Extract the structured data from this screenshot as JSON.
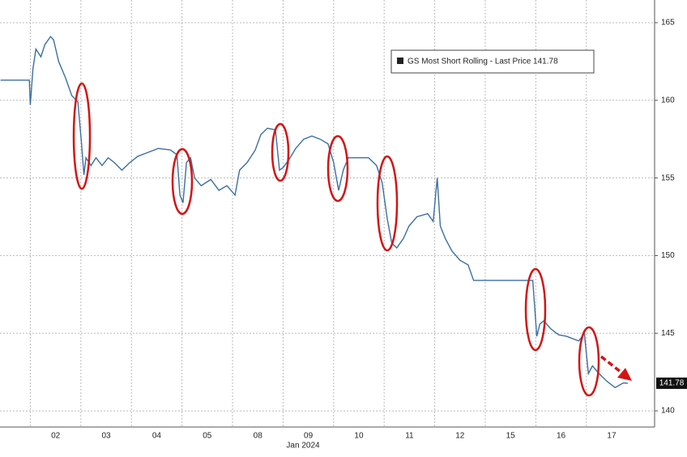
{
  "chart_data": {
    "type": "line",
    "x_label": "Jan 2024",
    "xlim": [
      -0.6,
      12.35
    ],
    "xticks": [
      {
        "value": 0.5,
        "label": "02"
      },
      {
        "value": 1.5,
        "label": "03"
      },
      {
        "value": 2.5,
        "label": "04"
      },
      {
        "value": 3.5,
        "label": "05"
      },
      {
        "value": 4.5,
        "label": "08"
      },
      {
        "value": 5.5,
        "label": "09"
      },
      {
        "value": 6.5,
        "label": "10"
      },
      {
        "value": 7.5,
        "label": "11"
      },
      {
        "value": 8.5,
        "label": "12"
      },
      {
        "value": 9.5,
        "label": "15"
      },
      {
        "value": 10.5,
        "label": "16"
      },
      {
        "value": 11.5,
        "label": "17"
      }
    ],
    "ylim": [
      138.96,
      166.46
    ],
    "yticks": [
      140,
      145,
      150,
      155,
      160,
      165
    ],
    "grid": true,
    "series": [
      {
        "name": "GS Most Short Rolling - Last Price 141.78",
        "color": "#3b6fa3",
        "x": [
          -0.59,
          -0.02,
          0,
          0.05,
          0.11,
          0.21,
          0.29,
          0.4,
          0.46,
          0.56,
          0.69,
          0.82,
          0.94,
          1.01,
          1.06,
          1.1,
          1.2,
          1.3,
          1.42,
          1.54,
          1.66,
          1.81,
          1.97,
          2.13,
          2.29,
          2.53,
          2.77,
          2.9,
          2.96,
          3.02,
          3.09,
          3.17,
          3.25,
          3.38,
          3.57,
          3.73,
          3.89,
          4.05,
          4.14,
          4.29,
          4.45,
          4.56,
          4.69,
          4.85,
          4.93,
          5.01,
          5.14,
          5.25,
          5.41,
          5.57,
          5.73,
          5.89,
          6.0,
          6.1,
          6.19,
          6.29,
          6.45,
          6.69,
          6.85,
          6.96,
          7.06,
          7.15,
          7.25,
          7.38,
          7.49,
          7.65,
          7.86,
          7.97,
          8.05,
          8.11,
          8.21,
          8.34,
          8.5,
          8.66,
          8.77,
          9.01,
          9.94,
          10.02,
          10.08,
          10.16,
          10.29,
          10.45,
          10.61,
          10.85,
          10.96,
          11.04,
          11.12,
          11.25,
          11.41,
          11.57,
          11.73,
          11.82
        ],
        "values": [
          161.3,
          161.3,
          159.7,
          162.0,
          163.3,
          162.8,
          163.6,
          164.1,
          163.9,
          162.5,
          161.5,
          160.3,
          159.9,
          157.3,
          155.2,
          156.3,
          155.8,
          156.3,
          155.8,
          156.3,
          156.0,
          155.5,
          156.0,
          156.4,
          156.6,
          156.9,
          156.8,
          156.5,
          153.9,
          153.4,
          156.0,
          156.3,
          155.0,
          154.5,
          154.9,
          154.2,
          154.5,
          153.9,
          155.5,
          156.0,
          156.8,
          157.8,
          158.2,
          158.1,
          155.5,
          155.7,
          156.3,
          156.9,
          157.5,
          157.7,
          157.5,
          157.2,
          156.0,
          154.2,
          155.5,
          156.3,
          156.3,
          156.3,
          155.8,
          154.7,
          152.4,
          150.8,
          150.5,
          151.1,
          151.9,
          152.5,
          152.7,
          152.2,
          155.0,
          151.9,
          151.1,
          150.3,
          149.7,
          149.4,
          148.4,
          148.4,
          148.4,
          144.8,
          145.6,
          145.8,
          145.3,
          144.9,
          144.8,
          144.5,
          145.0,
          142.4,
          142.9,
          142.4,
          141.9,
          141.5,
          141.8,
          141.78
        ]
      }
    ]
  }
}
